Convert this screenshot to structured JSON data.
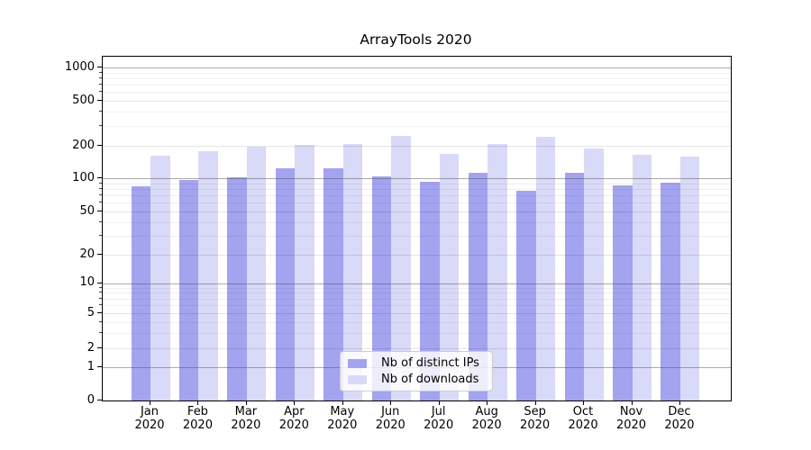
{
  "chart_data": {
    "type": "bar",
    "title": "ArrayTools 2020",
    "categories": [
      "Jan 2020",
      "Feb 2020",
      "Mar 2020",
      "Apr 2020",
      "May 2020",
      "Jun 2020",
      "Jul 2020",
      "Aug 2020",
      "Sep 2020",
      "Oct 2020",
      "Nov 2020",
      "Dec 2020"
    ],
    "series": [
      {
        "name": "Nb of distinct IPs",
        "color": "#a3a3ef",
        "values": [
          85,
          96,
          101,
          124,
          124,
          104,
          93,
          112,
          77,
          113,
          86,
          91
        ]
      },
      {
        "name": "Nb of downloads",
        "color": "#d9d9f8",
        "values": [
          162,
          178,
          196,
          204,
          206,
          245,
          168,
          206,
          240,
          190,
          166,
          158
        ]
      }
    ],
    "yscale": "symlog",
    "yticks": [
      0,
      1,
      2,
      5,
      10,
      20,
      50,
      100,
      200,
      500,
      1000
    ],
    "major_decades": [
      1,
      10,
      100,
      1000
    ],
    "ylim": [
      0,
      1250
    ],
    "xlabel": "",
    "ylabel": "",
    "grid": true,
    "legend_position": "lower center"
  }
}
